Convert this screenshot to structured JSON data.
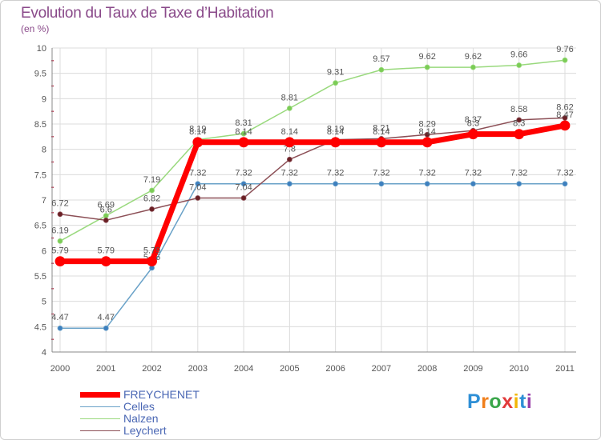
{
  "chart_data": {
    "type": "line",
    "title": "Evolution du Taux de Taxe d’Habitation",
    "ylabel": "(en %)",
    "xlabel": "",
    "categories": [
      "2000",
      "2001",
      "2002",
      "2003",
      "2004",
      "2005",
      "2006",
      "2007",
      "2008",
      "2009",
      "2010",
      "2011"
    ],
    "ylim": [
      4,
      10
    ],
    "yticks": [
      "4",
      "4.5",
      "5",
      "5.5",
      "6",
      "6.5",
      "7",
      "7.5",
      "8",
      "8.5",
      "9",
      "9.5",
      "10"
    ],
    "series": [
      {
        "name": "Celles",
        "color": "#6aa2c8",
        "marker": "#3d7fbf",
        "width": 1.5,
        "radius": 3,
        "values": [
          4.47,
          4.47,
          5.66,
          7.32,
          7.32,
          7.32,
          7.32,
          7.32,
          7.32,
          7.32,
          7.32,
          7.32
        ],
        "labels": [
          "4.47",
          "4.47",
          "5.66",
          "7.32",
          "7.32",
          "7.32",
          "7.32",
          "7.32",
          "7.32",
          "7.32",
          "7.32",
          "7.32"
        ]
      },
      {
        "name": "Nalzen",
        "color": "#99d97d",
        "marker": "#7bcc55",
        "width": 1.5,
        "radius": 3,
        "values": [
          6.19,
          6.69,
          7.19,
          8.19,
          8.31,
          8.81,
          9.31,
          9.57,
          9.62,
          9.62,
          9.66,
          9.76
        ],
        "labels": [
          "6.19",
          "6.69",
          "7.19",
          "8.19",
          "8.31",
          "8.81",
          "9.31",
          "9.57",
          "9.62",
          "9.62",
          "9.66",
          "9.76"
        ]
      },
      {
        "name": "Leychert",
        "color": "#8c4f56",
        "marker": "#6a1f24",
        "width": 1.5,
        "radius": 3,
        "values": [
          6.72,
          6.6,
          6.82,
          7.04,
          7.04,
          7.8,
          8.19,
          8.21,
          8.29,
          8.37,
          8.58,
          8.62
        ],
        "labels": [
          "6.72",
          "6.6",
          "6.82",
          "7.04",
          "7.04",
          "7.8",
          "8.19",
          "8.21",
          "8.29",
          "8.37",
          "8.58",
          "8.62"
        ]
      },
      {
        "name": "FREYCHENET",
        "color": "#ff0000",
        "marker": "#ff0000",
        "width": 7,
        "radius": 6,
        "values": [
          5.79,
          5.79,
          5.79,
          8.14,
          8.14,
          8.14,
          8.14,
          8.14,
          8.14,
          8.3,
          8.3,
          8.47
        ],
        "labels": [
          "5.79",
          "5.79",
          "5.79",
          "8.14",
          "8.14",
          "8.14",
          "8.14",
          "8.14",
          "8.14",
          "8.3",
          "8.3",
          "8.47"
        ]
      }
    ],
    "legend": [
      "FREYCHENET",
      "Celles",
      "Nalzen",
      "Leychert"
    ],
    "grid": true
  },
  "logo": {
    "letters": [
      "P",
      "r",
      "o",
      "x",
      "i",
      "t",
      "i"
    ],
    "colors": [
      "#2e8fd6",
      "#f07f1b",
      "#3aa64a",
      "#e23b3b",
      "#f2b705",
      "#2e8fd6",
      "#9a3fa8"
    ]
  }
}
